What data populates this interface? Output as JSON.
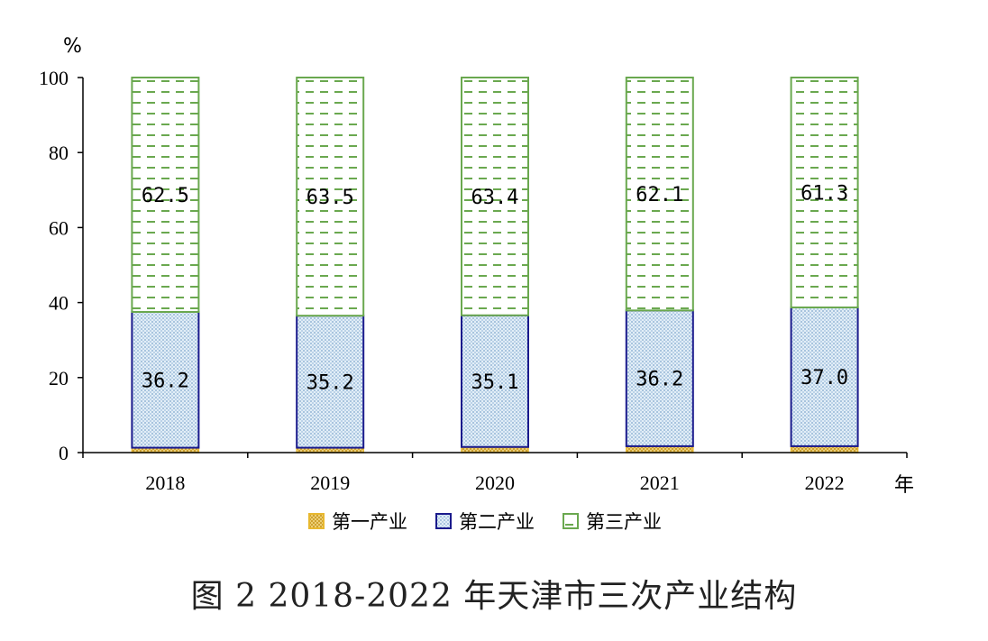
{
  "chart_data": {
    "type": "bar",
    "stacked": true,
    "categories": [
      "2018",
      "2019",
      "2020",
      "2021",
      "2022"
    ],
    "series": [
      {
        "name": "第一产业",
        "values": [
          1.3,
          1.3,
          1.5,
          1.7,
          1.7
        ],
        "color": "#e8b830",
        "pattern": "crosshatch"
      },
      {
        "name": "第二产业",
        "values": [
          36.2,
          35.2,
          35.1,
          36.2,
          37.0
        ],
        "color": "#1a1a8c",
        "pattern": "dots"
      },
      {
        "name": "第三产业",
        "values": [
          62.5,
          63.5,
          63.4,
          62.1,
          61.3
        ],
        "color": "#6aa84f",
        "pattern": "dashes"
      }
    ],
    "data_labels": {
      "第二产业": [
        "36.2",
        "35.2",
        "35.1",
        "36.2",
        "37.0"
      ],
      "第三产业": [
        "62.5",
        "63.5",
        "63.4",
        "62.1",
        "61.3"
      ]
    },
    "ylabel": "%",
    "xlabel": "年",
    "ylim": [
      0,
      100
    ],
    "yticks": [
      0,
      20,
      40,
      60,
      80,
      100
    ],
    "legend_position": "bottom",
    "title": "图 2 2018-2022 年天津市三次产业结构"
  }
}
